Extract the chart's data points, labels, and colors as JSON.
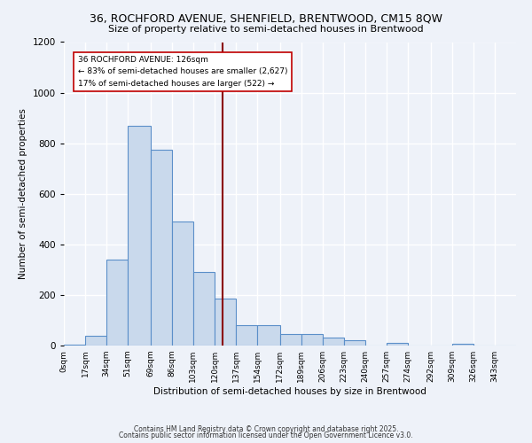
{
  "title1": "36, ROCHFORD AVENUE, SHENFIELD, BRENTWOOD, CM15 8QW",
  "title2": "Size of property relative to semi-detached houses in Brentwood",
  "xlabel": "Distribution of semi-detached houses by size in Brentwood",
  "ylabel": "Number of semi-detached properties",
  "bin_labels": [
    "0sqm",
    "17sqm",
    "34sqm",
    "51sqm",
    "69sqm",
    "86sqm",
    "103sqm",
    "120sqm",
    "137sqm",
    "154sqm",
    "172sqm",
    "189sqm",
    "206sqm",
    "223sqm",
    "240sqm",
    "257sqm",
    "274sqm",
    "292sqm",
    "309sqm",
    "326sqm",
    "343sqm"
  ],
  "bar_values": [
    5,
    40,
    340,
    870,
    775,
    490,
    290,
    185,
    80,
    80,
    45,
    45,
    30,
    20,
    0,
    10,
    0,
    0,
    8,
    0,
    0
  ],
  "subject_value": 126,
  "annotation_line1": "36 ROCHFORD AVENUE: 126sqm",
  "annotation_line2": "← 83% of semi-detached houses are smaller (2,627)",
  "annotation_line3": "17% of semi-detached houses are larger (522) →",
  "bar_color": "#c9d9ec",
  "bar_edge_color": "#5b8fc9",
  "subject_line_color": "#8b0000",
  "annotation_box_edge": "#c00000",
  "footer1": "Contains HM Land Registry data © Crown copyright and database right 2025.",
  "footer2": "Contains public sector information licensed under the Open Government Licence v3.0.",
  "bg_color": "#eef2f9",
  "ylim": [
    0,
    1200
  ],
  "yticks": [
    0,
    200,
    400,
    600,
    800,
    1000,
    1200
  ],
  "bin_edges": [
    0,
    17,
    34,
    51,
    69,
    86,
    103,
    120,
    137,
    154,
    172,
    189,
    206,
    223,
    240,
    257,
    274,
    292,
    309,
    326,
    343,
    360
  ]
}
